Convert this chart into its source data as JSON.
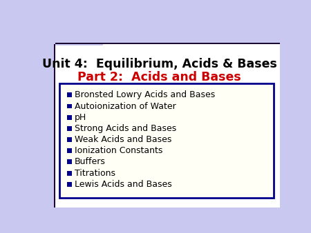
{
  "title_line1": "Unit 4:  Equilibrium, Acids & Bases",
  "title_line2": "Part 2:  Acids and Bases",
  "title_line1_color": "#000000",
  "title_line2_color": "#cc0000",
  "slide_bg_color": "#c8c8f0",
  "white_area_color": "#ffffff",
  "box_bg_color": "#fffff5",
  "box_border_color": "#00008b",
  "bullet_color": "#00008b",
  "bullet_text_color": "#000000",
  "dark_line_color": "#1a0033",
  "bullets": [
    "Bronsted Lowry Acids and Bases",
    "Autoionization of Water",
    "pH",
    "Strong Acids and Bases",
    "Weak Acids and Bases",
    "Ionization Constants",
    "Buffers",
    "Titrations",
    "Lewis Acids and Bases"
  ]
}
